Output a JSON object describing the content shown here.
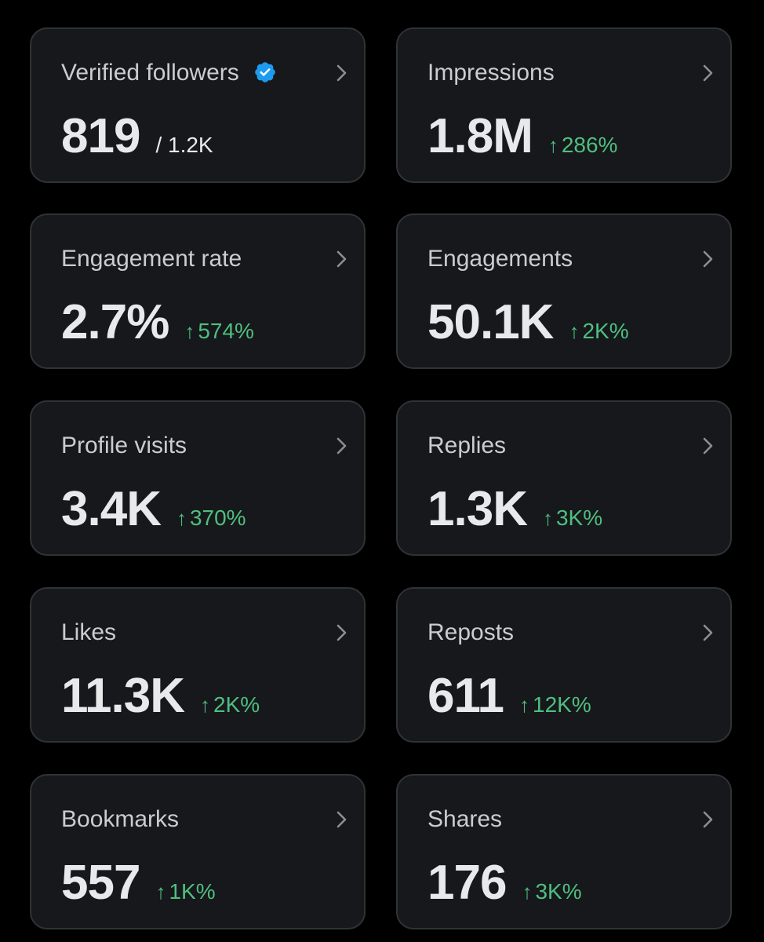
{
  "colors": {
    "background": "#000000",
    "card": "#16181c",
    "card_border": "#2f3336",
    "label": "#c9ccd1",
    "value": "#e7e9ea",
    "positive": "#4fbf7f",
    "verified_blue": "#1d9bf0"
  },
  "icons": {
    "verified": "verified-badge-icon",
    "chevron": "chevron-right-icon",
    "arrow": "arrow-up-icon"
  },
  "metrics": {
    "verified_followers": {
      "label": "Verified followers",
      "value": "819",
      "total": "/ 1.2K"
    },
    "impressions": {
      "label": "Impressions",
      "value": "1.8M",
      "arrow": "↑",
      "change": "286%"
    },
    "engagement_rate": {
      "label": "Engagement rate",
      "value": "2.7%",
      "arrow": "↑",
      "change": "574%"
    },
    "engagements": {
      "label": "Engagements",
      "value": "50.1K",
      "arrow": "↑",
      "change": "2K%"
    },
    "profile_visits": {
      "label": "Profile visits",
      "value": "3.4K",
      "arrow": "↑",
      "change": "370%"
    },
    "replies": {
      "label": "Replies",
      "value": "1.3K",
      "arrow": "↑",
      "change": "3K%"
    },
    "likes": {
      "label": "Likes",
      "value": "11.3K",
      "arrow": "↑",
      "change": "2K%"
    },
    "reposts": {
      "label": "Reposts",
      "value": "611",
      "arrow": "↑",
      "change": "12K%"
    },
    "bookmarks": {
      "label": "Bookmarks",
      "value": "557",
      "arrow": "↑",
      "change": "1K%"
    },
    "shares": {
      "label": "Shares",
      "value": "176",
      "arrow": "↑",
      "change": "3K%"
    }
  }
}
